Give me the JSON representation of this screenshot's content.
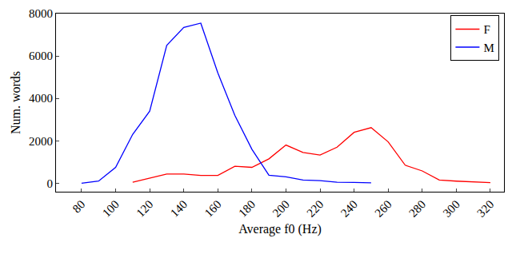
{
  "chart_data": {
    "type": "line",
    "x_label": "Average f0 (Hz)",
    "y_label": "Num. words",
    "xlim": [
      65,
      328
    ],
    "xticks": [
      80,
      100,
      120,
      140,
      160,
      180,
      200,
      220,
      240,
      260,
      280,
      300,
      320
    ],
    "ylim": [
      -400,
      8000
    ],
    "yticks": [
      0,
      2000,
      4000,
      6000,
      8000
    ],
    "grid": false,
    "legend": "upper right",
    "series": [
      {
        "name": "F",
        "color": "#ff0000",
        "x": [
          110,
          120,
          130,
          140,
          150,
          160,
          170,
          180,
          190,
          200,
          210,
          220,
          230,
          240,
          250,
          260,
          270,
          280,
          290,
          300,
          310,
          320
        ],
        "values": [
          50,
          230,
          430,
          430,
          370,
          370,
          800,
          750,
          1150,
          1800,
          1450,
          1330,
          1700,
          2400,
          2620,
          1950,
          850,
          580,
          150,
          100,
          60,
          30
        ]
      },
      {
        "name": "M",
        "color": "#0000ff",
        "x": [
          80,
          90,
          100,
          110,
          120,
          130,
          140,
          150,
          160,
          170,
          180,
          190,
          200,
          210,
          220,
          230,
          240,
          250
        ],
        "values": [
          0,
          100,
          750,
          2300,
          3400,
          6500,
          7350,
          7550,
          5200,
          3200,
          1600,
          380,
          300,
          150,
          120,
          50,
          40,
          20
        ]
      }
    ]
  }
}
